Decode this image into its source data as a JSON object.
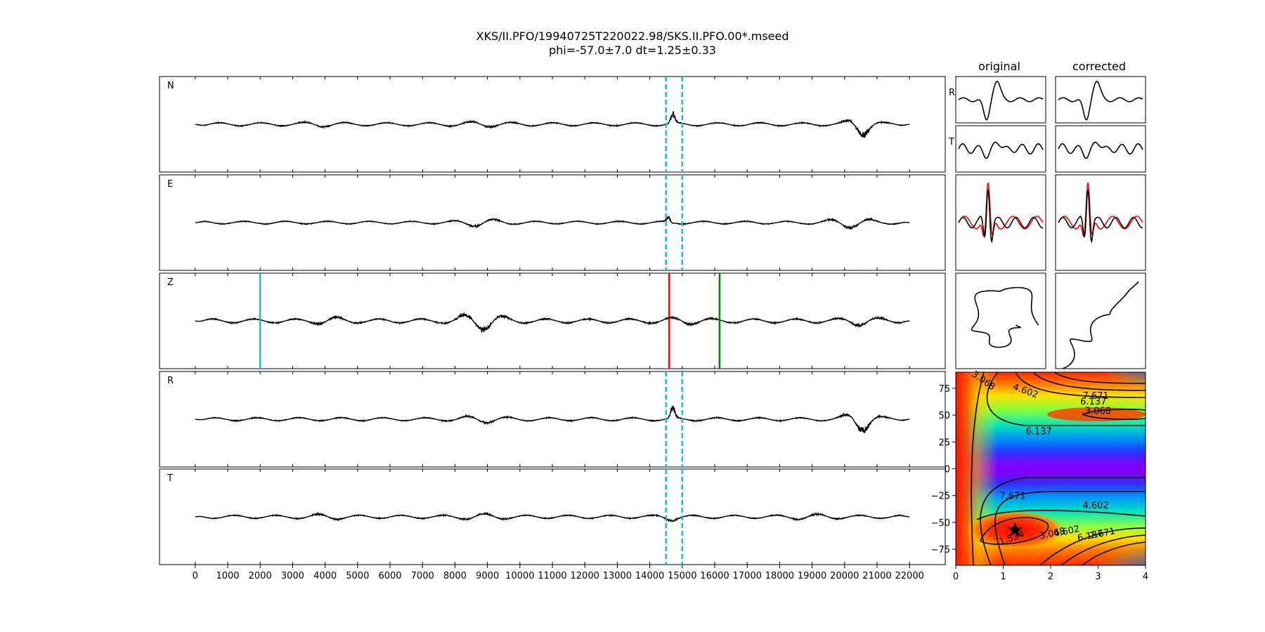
{
  "title": {
    "line1": "XKS/II.PFO/19940725T220022.98/SKS.II.PFO.00*.mseed",
    "line2": "phi=-57.0±7.0 dt=1.25±0.33"
  },
  "colors": {
    "trace": "#000000",
    "cyan": "#17becf",
    "red": "#ff0000",
    "green": "#008000",
    "red_trace": "#ff0000"
  },
  "column_titles": {
    "original": "original",
    "corrected": "corrected"
  },
  "chart_data": [
    {
      "type": "line",
      "name": "waveform-panels",
      "channels": [
        "N",
        "E",
        "Z",
        "R",
        "T"
      ],
      "x_ticks": [
        0,
        1000,
        2000,
        3000,
        4000,
        5000,
        6000,
        7000,
        8000,
        9000,
        10000,
        11000,
        12000,
        13000,
        14000,
        15000,
        16000,
        17000,
        18000,
        19000,
        20000,
        21000,
        22000
      ],
      "x_tick_labels": [
        "0",
        "1000",
        "2000",
        "3000",
        "4000",
        "5000",
        "6000",
        "7000",
        "8000",
        "9000",
        "10000",
        "11000",
        "12000",
        "13000",
        "14000",
        "15000",
        "16000",
        "17000",
        "18000",
        "19000",
        "20000",
        "21000",
        "22000"
      ],
      "xlim": [
        -1100,
        23100
      ],
      "trace_range": [
        0,
        22000
      ],
      "window_lines": [
        14500,
        15000
      ],
      "z_markers": [
        {
          "x": 2000,
          "color": "#17becf"
        },
        {
          "x": 14600,
          "color": "#ff0000"
        },
        {
          "x": 16150,
          "color": "#008000"
        }
      ]
    },
    {
      "type": "line",
      "name": "particle-motion-panels",
      "row_labels": [
        "R",
        "T"
      ]
    },
    {
      "type": "heatmap",
      "name": "energy-grid",
      "xlim": [
        0,
        4
      ],
      "ylim": [
        -90,
        90
      ],
      "x_ticks": [
        0,
        1,
        2,
        3,
        4
      ],
      "x_tick_labels": [
        "0",
        "1",
        "2",
        "3",
        "4"
      ],
      "y_ticks": [
        75,
        50,
        25,
        0,
        -25,
        -50,
        -75
      ],
      "y_tick_labels": [
        "75",
        "50",
        "25",
        "0",
        "−25",
        "−50",
        "−75"
      ],
      "contour_labels": [
        {
          "text": "3.068",
          "x": 0.55,
          "y": 80
        },
        {
          "text": "4.602",
          "x": 1.45,
          "y": 70
        },
        {
          "text": "7.671",
          "x": 2.95,
          "y": 65
        },
        {
          "text": "6.137",
          "x": 2.9,
          "y": 60
        },
        {
          "text": "3.068",
          "x": 3.0,
          "y": 51
        },
        {
          "text": "6.137",
          "x": 1.75,
          "y": 32
        },
        {
          "text": "7.671",
          "x": 1.2,
          "y": -28
        },
        {
          "text": "4.602",
          "x": 2.95,
          "y": -37
        },
        {
          "text": "1.534",
          "x": 1.2,
          "y": -67
        },
        {
          "text": "3.068",
          "x": 2.05,
          "y": -63
        },
        {
          "text": "4.602",
          "x": 2.35,
          "y": -61
        },
        {
          "text": "7.671",
          "x": 3.1,
          "y": -63
        },
        {
          "text": "6.137",
          "x": 2.85,
          "y": -65
        }
      ],
      "best_fit": {
        "dt": 1.25,
        "phi": -57.0
      }
    }
  ]
}
